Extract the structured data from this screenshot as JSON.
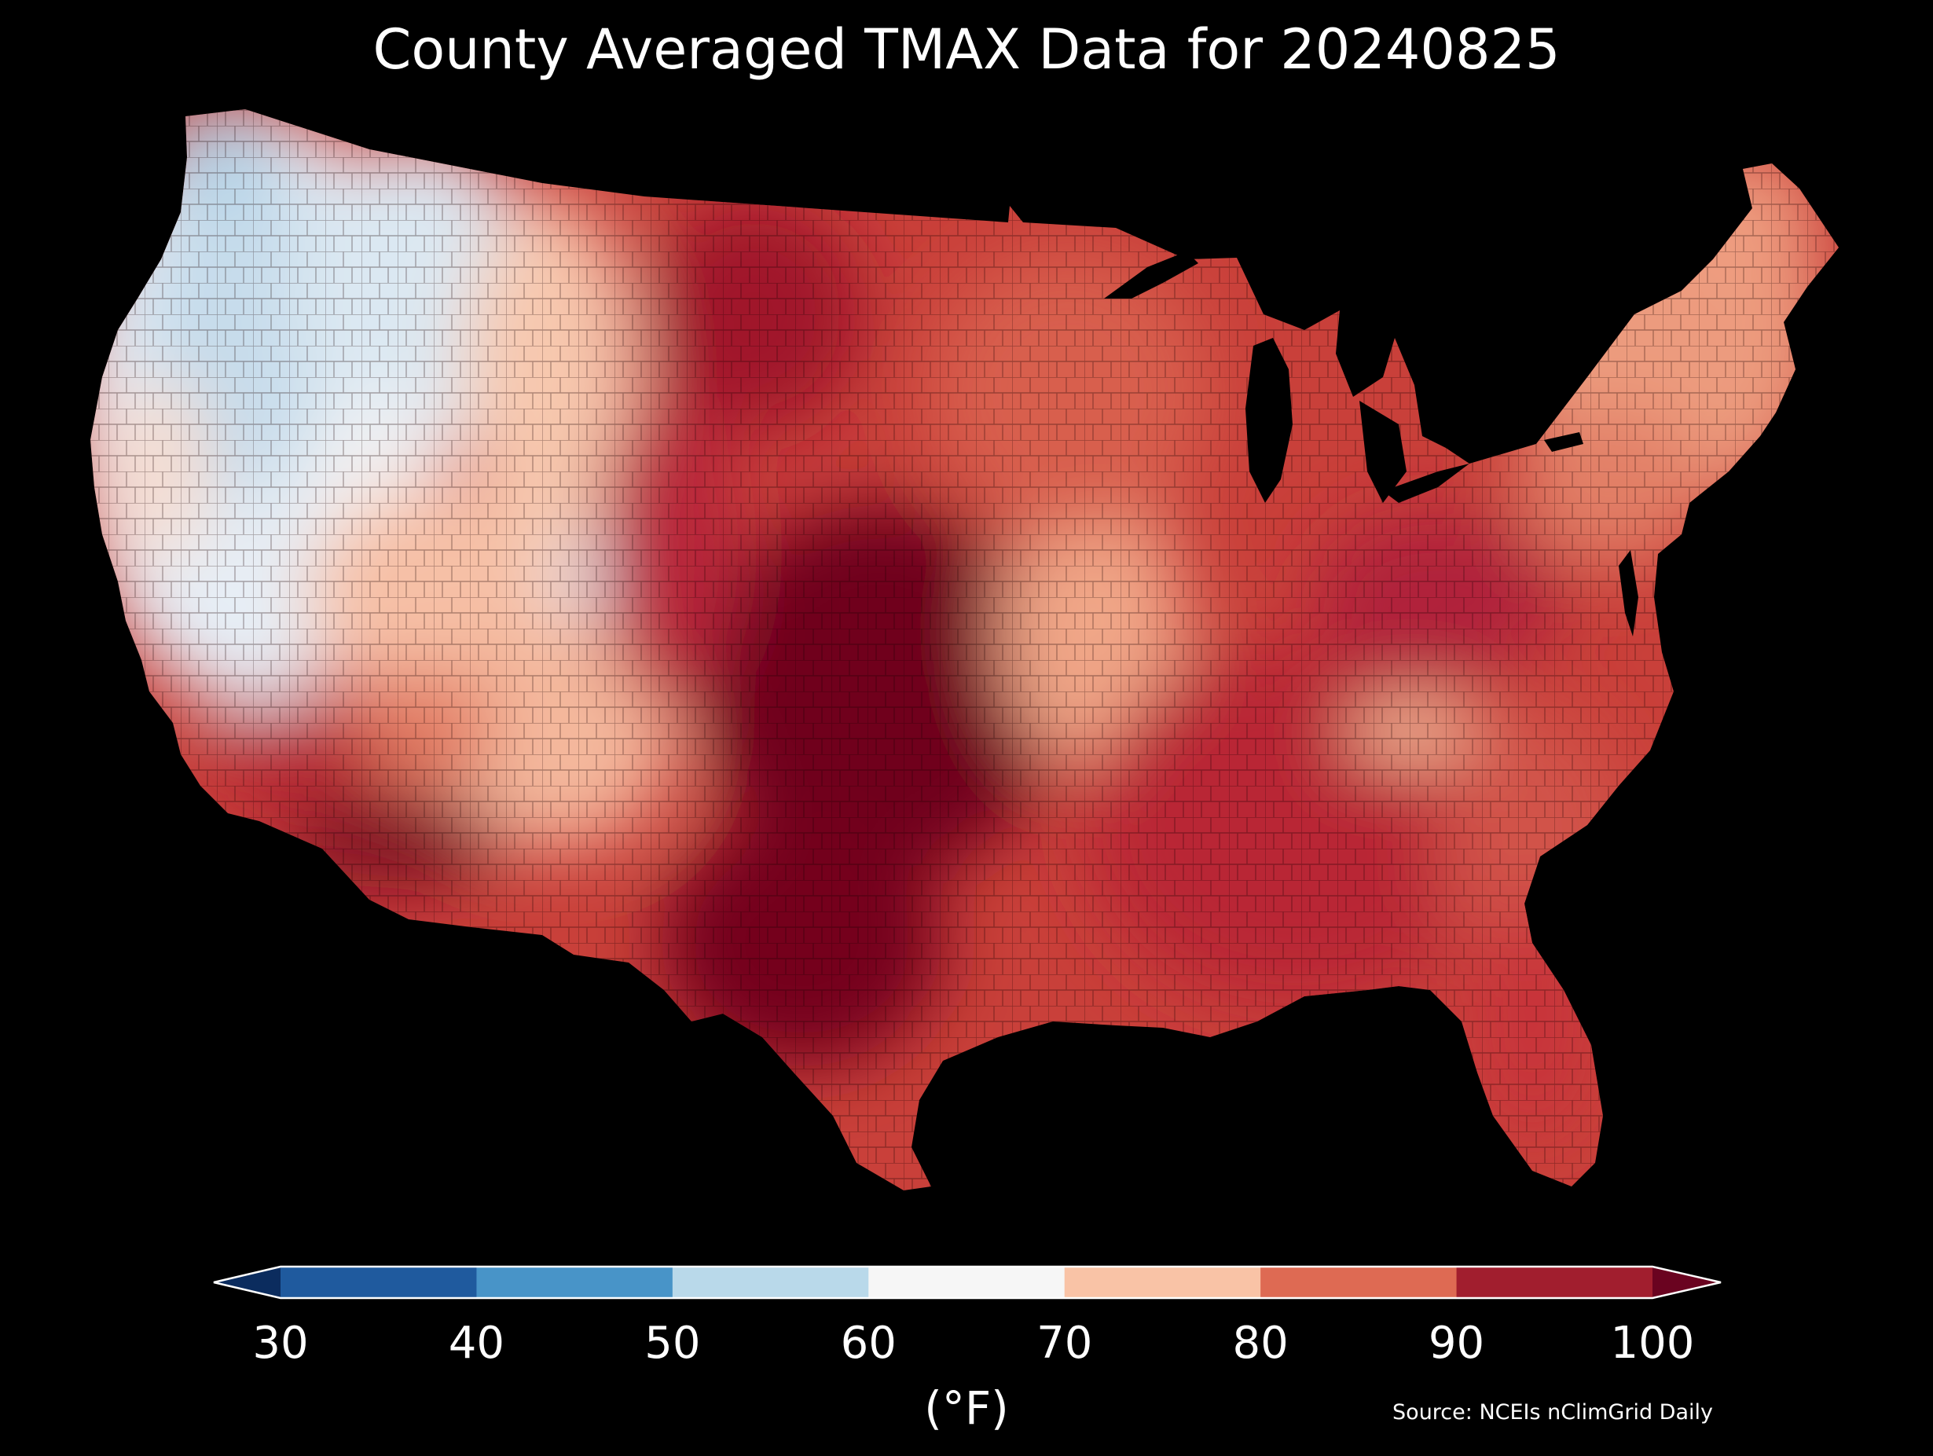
{
  "title": "County Averaged TMAX Data for 20240825",
  "map": {
    "region": "contiguous-united-states",
    "variable": "TMAX",
    "date": "20240825"
  },
  "colorbar": {
    "unit": "(°F)",
    "ticks": [
      "30",
      "40",
      "50",
      "60",
      "70",
      "80",
      "90",
      "100"
    ],
    "bins": [
      {
        "min": null,
        "max": 30,
        "color": "#0b2c5e"
      },
      {
        "min": 30,
        "max": 40,
        "color": "#1f5a9e"
      },
      {
        "min": 40,
        "max": 50,
        "color": "#4894c8"
      },
      {
        "min": 50,
        "max": 60,
        "color": "#b9d9ea"
      },
      {
        "min": 60,
        "max": 70,
        "color": "#f6f6f6"
      },
      {
        "min": 70,
        "max": 80,
        "color": "#f9c3a6"
      },
      {
        "min": 80,
        "max": 90,
        "color": "#de6a53"
      },
      {
        "min": 90,
        "max": 100,
        "color": "#a11e2e"
      },
      {
        "min": 100,
        "max": null,
        "color": "#6a0320"
      }
    ]
  },
  "source": "Source: NCEIs nClimGrid Daily"
}
